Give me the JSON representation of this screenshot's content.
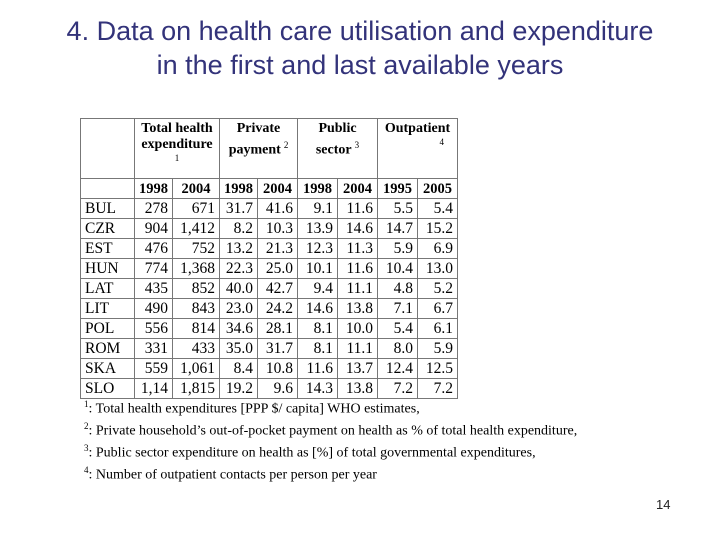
{
  "slide": {
    "title_line1": "4. Data on health care utilisation and expenditure",
    "title_line2": "in the first and last available years",
    "page_number": "14"
  },
  "table": {
    "groups": [
      {
        "line1": "Total health",
        "line2": "expenditure",
        "mark": "1"
      },
      {
        "line1": "Private",
        "line2": "payment",
        "mark": "2"
      },
      {
        "line1": "Public",
        "line2": "sector",
        "mark": "3"
      },
      {
        "line1": "Outpatient",
        "line2": "",
        "mark": "4"
      }
    ],
    "years": [
      "1998",
      "2004",
      "1998",
      "2004",
      "1998",
      "2004",
      "1995",
      "2005"
    ],
    "rows": [
      {
        "country": "BUL",
        "values": [
          "278",
          "671",
          "31.7",
          "41.6",
          "9.1",
          "11.6",
          "5.5",
          "5.4"
        ]
      },
      {
        "country": "CZR",
        "values": [
          "904",
          "1,412",
          "8.2",
          "10.3",
          "13.9",
          "14.6",
          "14.7",
          "15.2"
        ]
      },
      {
        "country": "EST",
        "values": [
          "476",
          "752",
          "13.2",
          "21.3",
          "12.3",
          "11.3",
          "5.9",
          "6.9"
        ]
      },
      {
        "country": "HUN",
        "values": [
          "774",
          "1,368",
          "22.3",
          "25.0",
          "10.1",
          "11.6",
          "10.4",
          "13.0"
        ]
      },
      {
        "country": "LAT",
        "values": [
          "435",
          "852",
          "40.0",
          "42.7",
          "9.4",
          "11.1",
          "4.8",
          "5.2"
        ]
      },
      {
        "country": "LIT",
        "values": [
          "490",
          "843",
          "23.0",
          "24.2",
          "14.6",
          "13.8",
          "7.1",
          "6.7"
        ]
      },
      {
        "country": "POL",
        "values": [
          "556",
          "814",
          "34.6",
          "28.1",
          "8.1",
          "10.0",
          "5.4",
          "6.1"
        ]
      },
      {
        "country": "ROM",
        "values": [
          "331",
          "433",
          "35.0",
          "31.7",
          "8.1",
          "11.1",
          "8.0",
          "5.9"
        ]
      },
      {
        "country": "SKA",
        "values": [
          "559",
          "1,061",
          "8.4",
          "10.8",
          "11.6",
          "13.7",
          "12.4",
          "12.5"
        ]
      },
      {
        "country": "SLO",
        "values": [
          "1,14",
          "1,815",
          "19.2",
          "9.6",
          "14.3",
          "13.8",
          "7.2",
          "7.2"
        ]
      }
    ]
  },
  "notes": [
    {
      "mark": "1",
      "text": ": Total health expenditures [PPP $/ capita] WHO estimates,"
    },
    {
      "mark": "2",
      "text": ": Private household’s out-of-pocket payment on health as % of total health expenditure,"
    },
    {
      "mark": "3",
      "text": ": Public sector expenditure on health as [%] of total governmental expenditures,"
    },
    {
      "mark": "4",
      "text": ": Number of outpatient contacts per person per year"
    }
  ]
}
